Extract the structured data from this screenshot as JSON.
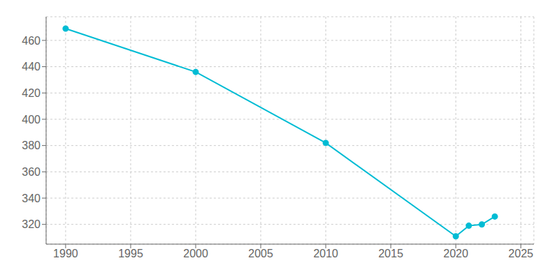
{
  "chart_data": {
    "type": "line",
    "x": [
      1990,
      2000,
      2010,
      2020,
      2021,
      2022,
      2023
    ],
    "values": [
      469,
      436,
      382,
      311,
      319,
      320,
      326
    ],
    "color": "#00BCD4",
    "marker": "circle",
    "xlim": [
      1988.5,
      2026
    ],
    "ylim": [
      305,
      478
    ],
    "xticks": [
      1990,
      1995,
      2000,
      2005,
      2010,
      2015,
      2020,
      2025
    ],
    "yticks": [
      320,
      340,
      360,
      380,
      400,
      420,
      440,
      460
    ],
    "grid": true
  }
}
